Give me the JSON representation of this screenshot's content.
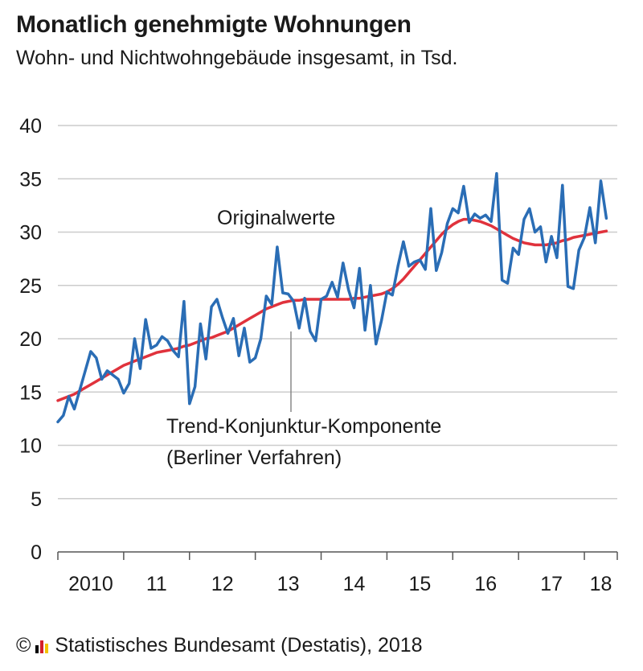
{
  "title": "Monatlich genehmigte Wohnungen",
  "subtitle": "Wohn- und Nichtwohngebäude insgesamt, in Tsd.",
  "footer": {
    "copyright": "©",
    "text": "Statistisches Bundesamt (Destatis), 2018"
  },
  "colors": {
    "original": "#2a6db5",
    "trend": "#e0323c",
    "grid": "#cccccc",
    "axis": "#555555"
  },
  "chart_data": {
    "type": "line",
    "title": "Monatlich genehmigte Wohnungen",
    "subtitle": "Wohn- und Nichtwohngebäude insgesamt, in Tsd.",
    "ylim": [
      0,
      40
    ],
    "yticks": [
      0,
      5,
      10,
      15,
      20,
      25,
      30,
      35,
      40
    ],
    "xlim": [
      "2010-01",
      "2018-07"
    ],
    "xtick_labels": [
      "2010",
      "11",
      "12",
      "13",
      "14",
      "15",
      "16",
      "17",
      "18"
    ],
    "grid": true,
    "annotations": {
      "original": "Originalwerte",
      "trend_line1": "Trend-Konjunktur-Komponente",
      "trend_line2": "(Berliner Verfahren)"
    },
    "series": [
      {
        "name": "Originalwerte",
        "x_start": "2010-01",
        "frequency": "monthly",
        "values": [
          12.2,
          12.8,
          14.6,
          13.4,
          15.2,
          17.0,
          18.8,
          18.2,
          16.2,
          17.0,
          16.6,
          16.2,
          14.9,
          15.8,
          20.0,
          17.2,
          21.8,
          19.1,
          19.4,
          20.2,
          19.8,
          18.9,
          18.3,
          23.5,
          13.9,
          15.5,
          21.4,
          18.1,
          23.0,
          23.7,
          22.0,
          20.5,
          21.9,
          18.4,
          21.0,
          17.8,
          18.2,
          20.0,
          24.0,
          23.2,
          28.6,
          24.3,
          24.2,
          23.5,
          21.0,
          23.8,
          20.7,
          19.8,
          23.7,
          24.0,
          25.3,
          23.9,
          27.1,
          24.6,
          22.9,
          26.6,
          20.8,
          25.0,
          19.5,
          21.7,
          24.4,
          24.1,
          26.8,
          29.1,
          26.8,
          27.2,
          27.4,
          26.5,
          32.2,
          26.4,
          28.1,
          30.8,
          32.2,
          31.8,
          34.3,
          30.9,
          31.7,
          31.3,
          31.6,
          31.0,
          35.5,
          25.5,
          25.2,
          28.5,
          27.9,
          31.2,
          32.2,
          30.0,
          30.5,
          27.2,
          29.6,
          27.6,
          34.4,
          24.9,
          24.7,
          28.3,
          29.5,
          32.3,
          29.0,
          34.8,
          31.3
        ]
      },
      {
        "name": "Trend-Konjunktur-Komponente (Berliner Verfahren)",
        "x_start": "2010-01",
        "frequency": "monthly",
        "values": [
          14.2,
          14.4,
          14.6,
          14.8,
          15.1,
          15.4,
          15.7,
          16.0,
          16.3,
          16.6,
          16.9,
          17.2,
          17.5,
          17.7,
          17.9,
          18.1,
          18.3,
          18.5,
          18.7,
          18.8,
          18.9,
          19.0,
          19.1,
          19.3,
          19.4,
          19.6,
          19.8,
          20.0,
          20.1,
          20.3,
          20.5,
          20.7,
          21.0,
          21.3,
          21.6,
          21.9,
          22.2,
          22.5,
          22.8,
          23.0,
          23.2,
          23.4,
          23.5,
          23.6,
          23.6,
          23.7,
          23.7,
          23.7,
          23.7,
          23.7,
          23.7,
          23.7,
          23.7,
          23.7,
          23.8,
          23.8,
          23.9,
          24.0,
          24.1,
          24.2,
          24.4,
          24.7,
          25.1,
          25.6,
          26.2,
          26.8,
          27.4,
          28.0,
          28.6,
          29.2,
          29.8,
          30.3,
          30.7,
          31.0,
          31.2,
          31.2,
          31.1,
          31.0,
          30.8,
          30.6,
          30.3,
          30.0,
          29.7,
          29.4,
          29.2,
          29.0,
          28.9,
          28.8,
          28.8,
          28.8,
          28.9,
          29.0,
          29.2,
          29.3,
          29.5,
          29.6,
          29.7,
          29.8,
          29.9,
          30.0,
          30.1
        ]
      }
    ]
  }
}
